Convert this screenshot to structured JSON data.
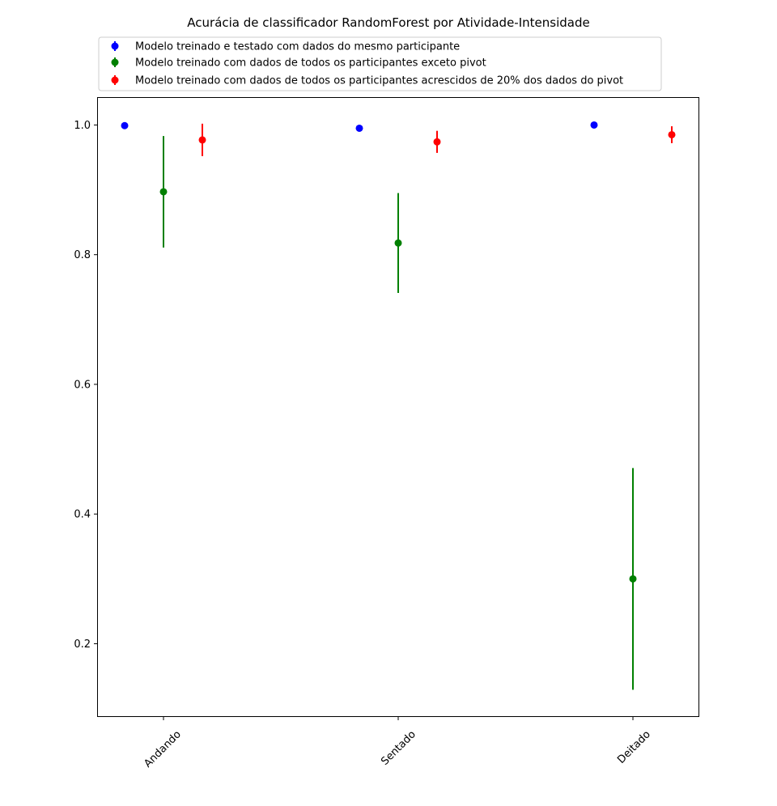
{
  "chart_data": {
    "type": "scatter",
    "title": "Acurácia de classificador RandomForest por Atividade-Intensidade",
    "xlabel": "",
    "ylabel": "",
    "categories": [
      "Andando",
      "Sentado",
      "Deitado"
    ],
    "ylim": [
      0.087,
      1.043
    ],
    "yticks": [
      "0.2",
      "0.4",
      "0.6",
      "0.8",
      "1.0"
    ],
    "grid": false,
    "legend_position": "top-left, above plot",
    "series": [
      {
        "name": "Modelo treinado e testado com dados do mesmo participante",
        "color": "#0000ff",
        "values": [
          0.999,
          0.995,
          1.0
        ],
        "errors": [
          0.0,
          0.0,
          0.0
        ]
      },
      {
        "name": "Modelo treinado com dados de todos os participantes exceto pivot",
        "color": "#008000",
        "values": [
          0.897,
          0.818,
          0.3
        ],
        "errors": [
          0.086,
          0.077,
          0.171
        ]
      },
      {
        "name": "Modelo treinado com dados de todos os participantes acrescidos de 20% dos dados do pivot",
        "color": "#ff0000",
        "values": [
          0.977,
          0.974,
          0.985
        ],
        "errors": [
          0.025,
          0.017,
          0.013
        ]
      }
    ]
  }
}
